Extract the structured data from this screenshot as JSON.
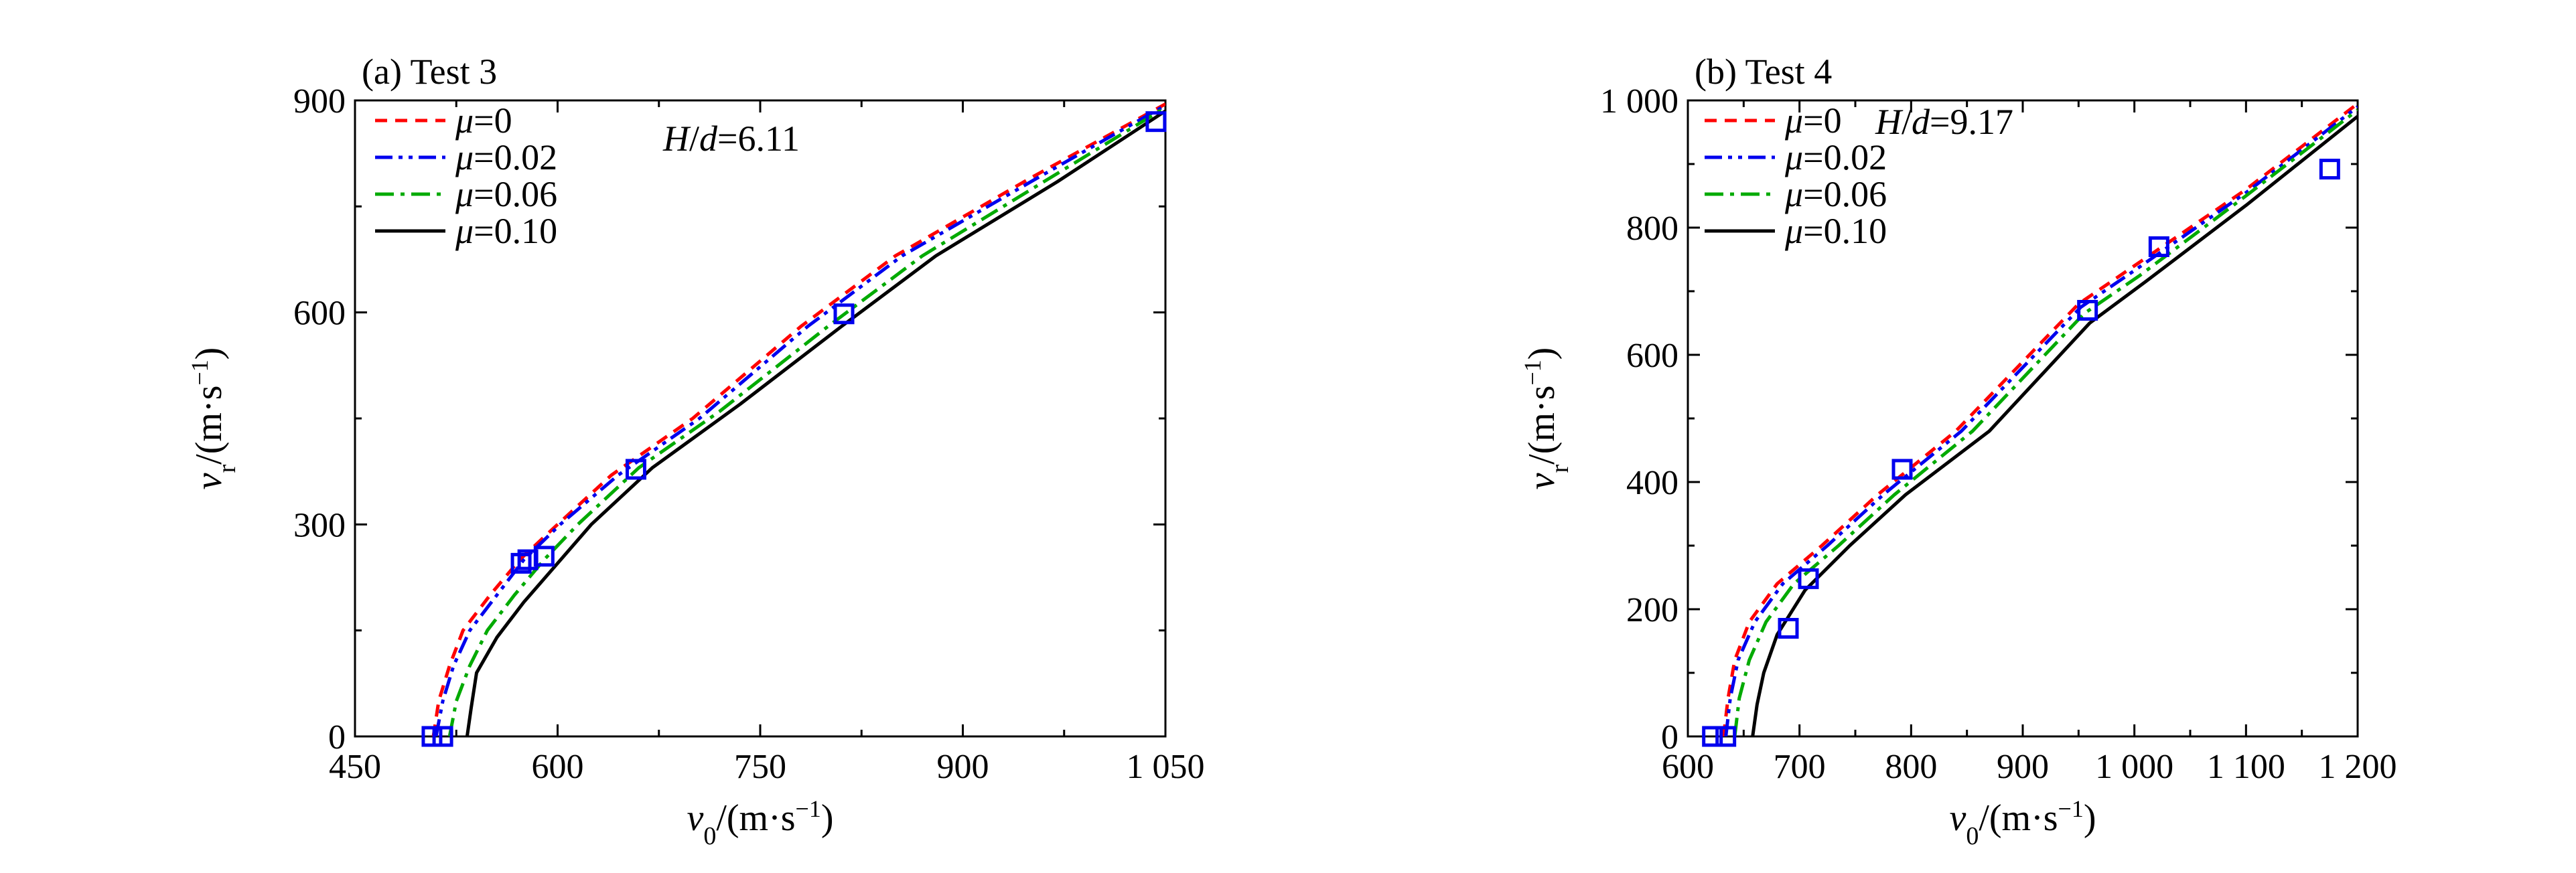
{
  "chart_data": [
    {
      "type": "line",
      "title": "(a) Test 3",
      "xlabel": "v0/(m·s−1)",
      "ylabel": "vr/(m·s−1)",
      "xlim": [
        450,
        1050
      ],
      "ylim": [
        0,
        900
      ],
      "xticks": [
        450,
        600,
        750,
        900,
        1050
      ],
      "xtick_labels": [
        "450",
        "600",
        "750",
        "900",
        "1 050"
      ],
      "yticks": [
        0,
        300,
        600,
        900
      ],
      "ytick_labels": [
        "0",
        "300",
        "600",
        "900"
      ],
      "annotation": "H/d=6.11",
      "legend_position": "top-left",
      "grid": false,
      "series": [
        {
          "name": "μ=0",
          "color": "#ff0000",
          "dash": "dashed",
          "points": [
            [
              508,
              0
            ],
            [
              512,
              50
            ],
            [
              520,
              100
            ],
            [
              530,
              150
            ],
            [
              550,
              200
            ],
            [
              572,
              250
            ],
            [
              600,
              300
            ],
            [
              640,
              370
            ],
            [
              700,
              450
            ],
            [
              780,
              580
            ],
            [
              850,
              680
            ],
            [
              950,
              790
            ],
            [
              1050,
              895
            ]
          ]
        },
        {
          "name": "μ=0.02",
          "color": "#0000ee",
          "dash": "dashdotdot",
          "points": [
            [
              510,
              0
            ],
            [
              515,
              50
            ],
            [
              523,
              100
            ],
            [
              535,
              150
            ],
            [
              555,
              200
            ],
            [
              575,
              250
            ],
            [
              602,
              300
            ],
            [
              645,
              370
            ],
            [
              705,
              450
            ],
            [
              785,
              580
            ],
            [
              855,
              680
            ],
            [
              955,
              790
            ],
            [
              1050,
              893
            ]
          ]
        },
        {
          "name": "μ=0.06",
          "color": "#00aa00",
          "dash": "dashdot",
          "points": [
            [
              520,
              0
            ],
            [
              525,
              50
            ],
            [
              535,
              100
            ],
            [
              548,
              150
            ],
            [
              568,
              200
            ],
            [
              590,
              250
            ],
            [
              615,
              300
            ],
            [
              660,
              380
            ],
            [
              720,
              460
            ],
            [
              800,
              580
            ],
            [
              870,
              680
            ],
            [
              960,
              785
            ],
            [
              1050,
              890
            ]
          ]
        },
        {
          "name": "μ=0.10",
          "color": "#000000",
          "dash": "solid",
          "points": [
            [
              533,
              0
            ],
            [
              536,
              40
            ],
            [
              540,
              90
            ],
            [
              555,
              140
            ],
            [
              575,
              190
            ],
            [
              600,
              245
            ],
            [
              625,
              300
            ],
            [
              670,
              380
            ],
            [
              735,
              470
            ],
            [
              810,
              580
            ],
            [
              880,
              680
            ],
            [
              970,
              785
            ],
            [
              1050,
              885
            ]
          ]
        }
      ],
      "markers": {
        "color": "#0000ee",
        "points": [
          [
            507,
            0
          ],
          [
            515,
            0
          ],
          [
            573,
            245
          ],
          [
            578,
            250
          ],
          [
            590,
            255
          ],
          [
            658,
            378
          ],
          [
            812,
            598
          ],
          [
            1043,
            870
          ]
        ]
      }
    },
    {
      "type": "line",
      "title": "(b) Test 4",
      "xlabel": "v0/(m·s−1)",
      "ylabel": "vr/(m·s−1)",
      "xlim": [
        600,
        1200
      ],
      "ylim": [
        0,
        1000
      ],
      "xticks": [
        600,
        700,
        800,
        900,
        1000,
        1100,
        1200
      ],
      "xtick_labels": [
        "600",
        "700",
        "800",
        "900",
        "1 000",
        "1 100",
        "1 200"
      ],
      "yticks": [
        0,
        200,
        400,
        600,
        800,
        1000
      ],
      "ytick_labels": [
        "0",
        "200",
        "400",
        "600",
        "800",
        "1 000"
      ],
      "annotation": "H/d=9.17",
      "legend_position": "top-left",
      "grid": false,
      "series": [
        {
          "name": "μ=0",
          "color": "#ff0000",
          "dash": "dashed",
          "points": [
            [
              632,
              0
            ],
            [
              636,
              60
            ],
            [
              642,
              120
            ],
            [
              655,
              180
            ],
            [
              680,
              240
            ],
            [
              720,
              300
            ],
            [
              770,
              380
            ],
            [
              840,
              480
            ],
            [
              950,
              680
            ],
            [
              1000,
              740
            ],
            [
              1100,
              860
            ],
            [
              1200,
              995
            ]
          ]
        },
        {
          "name": "μ=0.02",
          "color": "#0000ee",
          "dash": "dashdotdot",
          "points": [
            [
              634,
              0
            ],
            [
              638,
              60
            ],
            [
              645,
              120
            ],
            [
              660,
              180
            ],
            [
              685,
              240
            ],
            [
              725,
              300
            ],
            [
              775,
              380
            ],
            [
              845,
              480
            ],
            [
              952,
              675
            ],
            [
              1002,
              735
            ],
            [
              1100,
              855
            ],
            [
              1200,
              990
            ]
          ]
        },
        {
          "name": "μ=0.06",
          "color": "#00aa00",
          "dash": "dashdot",
          "points": [
            [
              642,
              0
            ],
            [
              646,
              60
            ],
            [
              655,
              120
            ],
            [
              670,
              180
            ],
            [
              695,
              240
            ],
            [
              735,
              300
            ],
            [
              785,
              380
            ],
            [
              855,
              480
            ],
            [
              955,
              665
            ],
            [
              1005,
              725
            ],
            [
              1100,
              850
            ],
            [
              1200,
              985
            ]
          ]
        },
        {
          "name": "μ=0.10",
          "color": "#000000",
          "dash": "solid",
          "points": [
            [
              658,
              0
            ],
            [
              662,
              50
            ],
            [
              668,
              100
            ],
            [
              680,
              160
            ],
            [
              705,
              230
            ],
            [
              745,
              300
            ],
            [
              795,
              380
            ],
            [
              870,
              480
            ],
            [
              960,
              650
            ],
            [
              1010,
              715
            ],
            [
              1100,
              835
            ],
            [
              1200,
              975
            ]
          ]
        }
      ],
      "markers": {
        "color": "#0000ee",
        "points": [
          [
            622,
            0
          ],
          [
            634,
            0
          ],
          [
            690,
            170
          ],
          [
            708,
            248
          ],
          [
            792,
            420
          ],
          [
            958,
            670
          ],
          [
            1022,
            770
          ],
          [
            1175,
            892
          ]
        ]
      }
    }
  ]
}
